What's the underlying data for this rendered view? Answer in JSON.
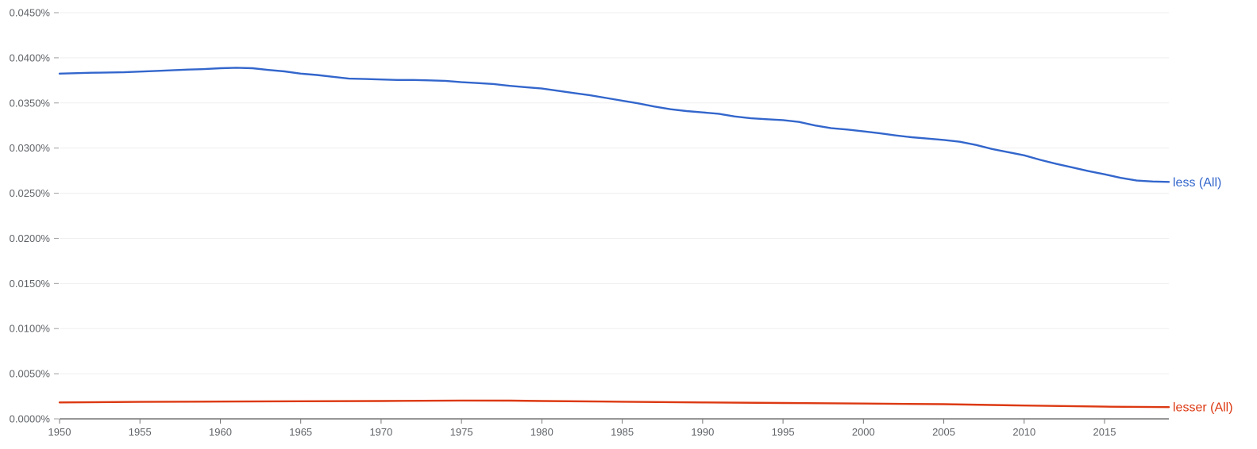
{
  "chart_data": {
    "type": "line",
    "x_axis": {
      "min": 1950,
      "max": 2019,
      "ticks": [
        "1950",
        "1955",
        "1960",
        "1965",
        "1970",
        "1975",
        "1980",
        "1985",
        "1990",
        "1995",
        "2000",
        "2005",
        "2010",
        "2015"
      ]
    },
    "y_axis": {
      "min": 0,
      "max": 0.045,
      "unit": "%",
      "ticks": [
        "0.0000%",
        "0.0050%",
        "0.0100%",
        "0.0150%",
        "0.0200%",
        "0.0250%",
        "0.0300%",
        "0.0350%",
        "0.0400%",
        "0.0450%"
      ]
    },
    "grid": true,
    "legend_placement": "inline at right end of each line",
    "series": [
      {
        "name": "less (All)",
        "color": "#3366cc",
        "x": [
          1950,
          1952,
          1954,
          1956,
          1958,
          1959,
          1960,
          1961,
          1962,
          1963,
          1964,
          1965,
          1966,
          1967,
          1968,
          1969,
          1970,
          1971,
          1972,
          1973,
          1974,
          1975,
          1976,
          1977,
          1978,
          1979,
          1980,
          1981,
          1982,
          1983,
          1984,
          1985,
          1986,
          1987,
          1988,
          1989,
          1990,
          1991,
          1992,
          1993,
          1994,
          1995,
          1996,
          1997,
          1998,
          1999,
          2000,
          2001,
          2002,
          2003,
          2004,
          2005,
          2006,
          2007,
          2008,
          2009,
          2010,
          2011,
          2012,
          2013,
          2014,
          2015,
          2016,
          2017,
          2018,
          2019
        ],
        "values": [
          0.03825,
          0.03835,
          0.0384,
          0.03855,
          0.0387,
          0.03875,
          0.03885,
          0.0389,
          0.03885,
          0.03865,
          0.0385,
          0.03825,
          0.0381,
          0.0379,
          0.0377,
          0.03765,
          0.0376,
          0.03755,
          0.03755,
          0.0375,
          0.03745,
          0.0373,
          0.0372,
          0.0371,
          0.0369,
          0.03675,
          0.0366,
          0.03635,
          0.0361,
          0.03585,
          0.03555,
          0.03525,
          0.03495,
          0.0346,
          0.0343,
          0.0341,
          0.03395,
          0.0338,
          0.0335,
          0.0333,
          0.0332,
          0.0331,
          0.0329,
          0.0325,
          0.0322,
          0.03205,
          0.03185,
          0.03165,
          0.0314,
          0.0312,
          0.03105,
          0.0309,
          0.0307,
          0.03035,
          0.0299,
          0.02955,
          0.0292,
          0.0287,
          0.02825,
          0.02785,
          0.02745,
          0.0271,
          0.0267,
          0.0264,
          0.0263,
          0.02625
        ]
      },
      {
        "name": "lesser (All)",
        "color": "#dc3912",
        "x": [
          1950,
          1955,
          1960,
          1965,
          1970,
          1975,
          1978,
          1980,
          1985,
          1990,
          1995,
          2000,
          2005,
          2010,
          2015,
          2019
        ],
        "values": [
          0.00182,
          0.00188,
          0.00192,
          0.00195,
          0.00198,
          0.00203,
          0.00202,
          0.00198,
          0.0019,
          0.00182,
          0.00176,
          0.0017,
          0.00163,
          0.00148,
          0.00135,
          0.0013
        ]
      }
    ]
  }
}
